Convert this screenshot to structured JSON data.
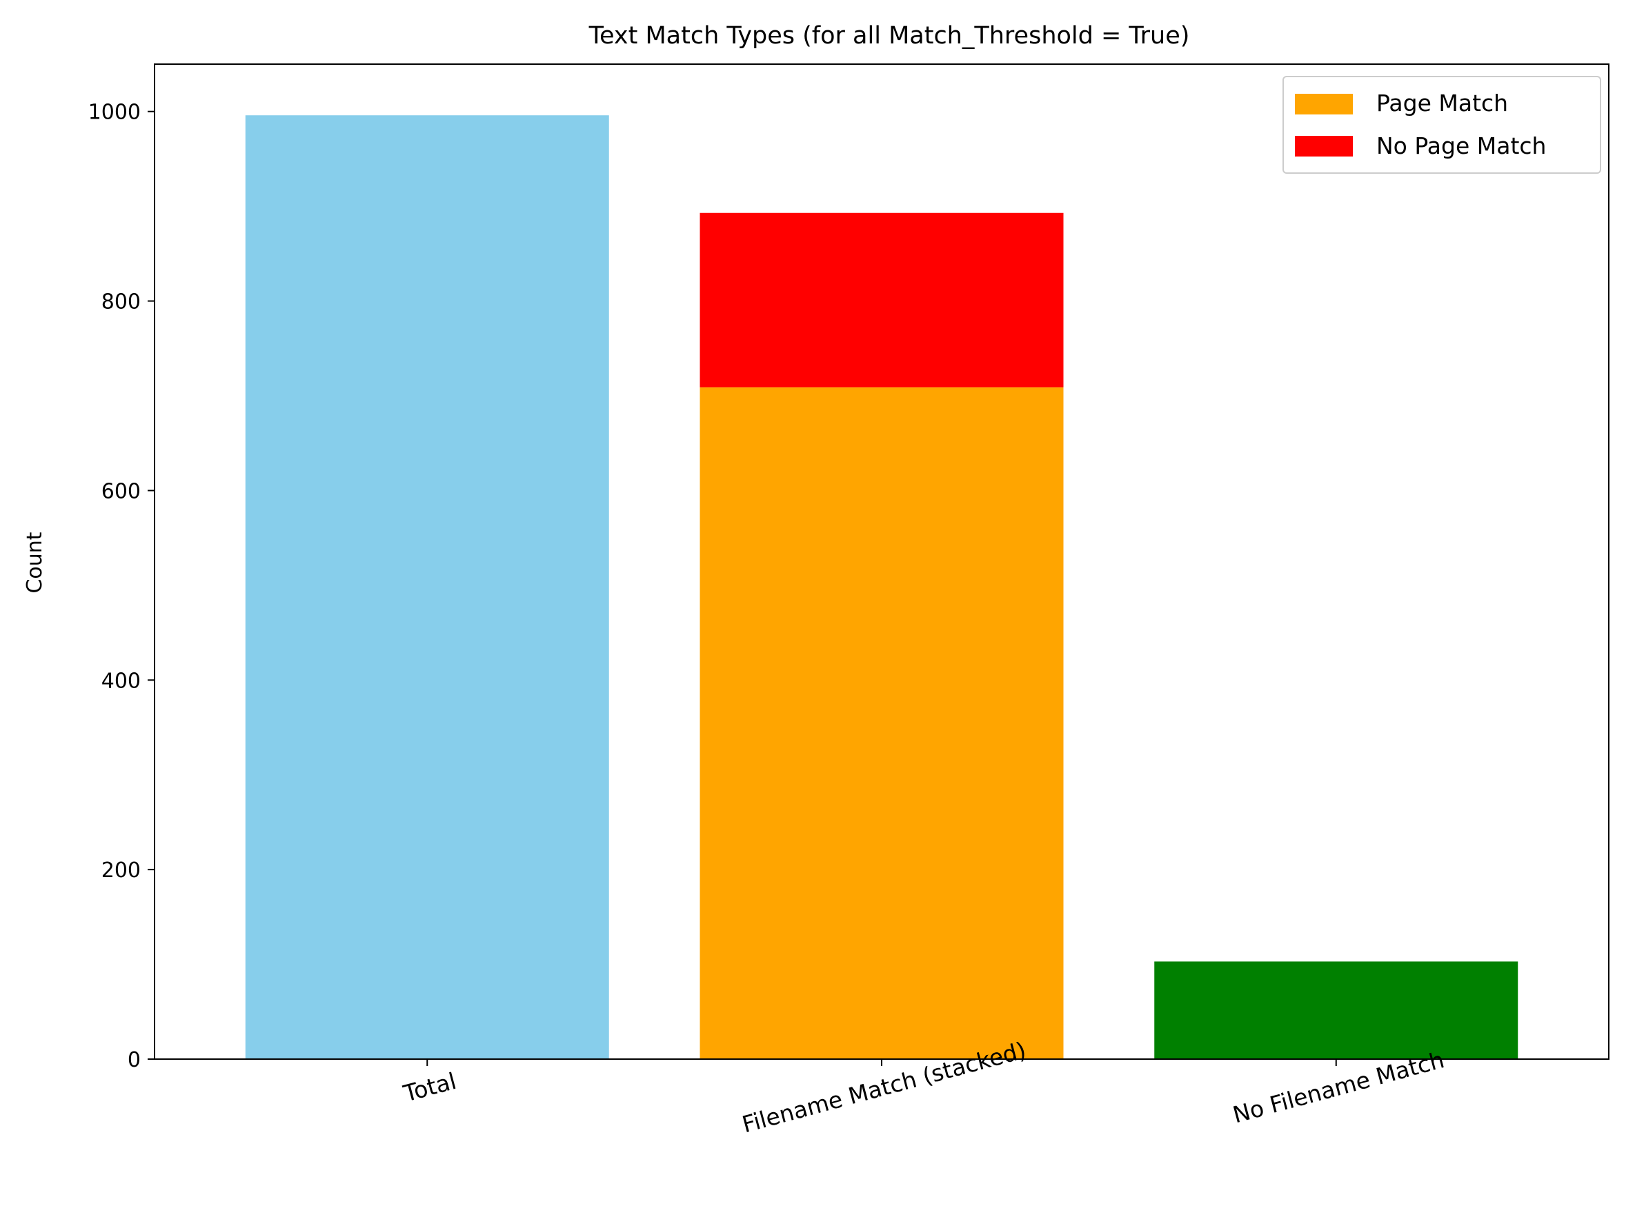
{
  "chart_data": {
    "type": "bar",
    "title": "Text Match Types (for all Match_Threshold = True)",
    "xlabel": "",
    "ylabel": "Count",
    "ylim": [
      0,
      1050
    ],
    "yticks": [
      0,
      200,
      400,
      600,
      800,
      1000
    ],
    "grid": false,
    "legend_position": "top-right",
    "categories": [
      "Total",
      "Filename Match (stacked)",
      "No Filename Match"
    ],
    "bars": [
      {
        "category": "Total",
        "value": 996,
        "color": "#87ceeb"
      },
      {
        "category": "Filename Match (stacked)",
        "stack": [
          {
            "series": "Page Match",
            "value": 709,
            "color": "#ffa500"
          },
          {
            "series": "No Page Match",
            "value": 184,
            "color": "#ff0000"
          }
        ]
      },
      {
        "category": "No Filename Match",
        "value": 103,
        "color": "#008000"
      }
    ],
    "legend": [
      {
        "label": "Page Match",
        "color": "#ffa500"
      },
      {
        "label": "No Page Match",
        "color": "#ff0000"
      }
    ]
  }
}
